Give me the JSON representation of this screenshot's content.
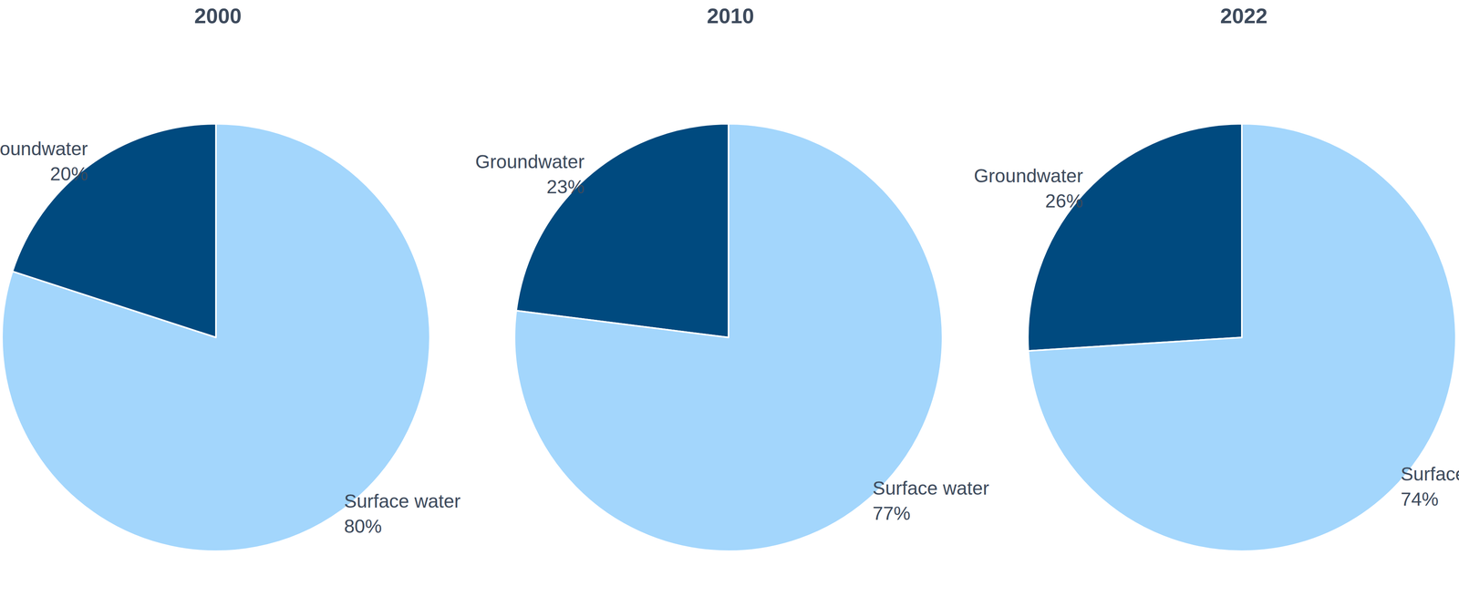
{
  "chart_data": [
    {
      "type": "pie",
      "title": "2000",
      "categories": [
        "Groundwater",
        "Surface water"
      ],
      "values": [
        20,
        80
      ],
      "value_labels": [
        "20%",
        "80%"
      ],
      "colors": [
        "#004a7f",
        "#a3d6fc"
      ],
      "data_labels": true
    },
    {
      "type": "pie",
      "title": "2010",
      "categories": [
        "Groundwater",
        "Surface water"
      ],
      "values": [
        23,
        77
      ],
      "value_labels": [
        "23%",
        "77%"
      ],
      "colors": [
        "#004a7f",
        "#a3d6fc"
      ],
      "data_labels": true
    },
    {
      "type": "pie",
      "title": "2022",
      "categories": [
        "Groundwater",
        "Surface water"
      ],
      "values": [
        26,
        74
      ],
      "value_labels": [
        "26%",
        "74%"
      ],
      "colors": [
        "#004a7f",
        "#a3d6fc"
      ],
      "data_labels": true
    }
  ]
}
